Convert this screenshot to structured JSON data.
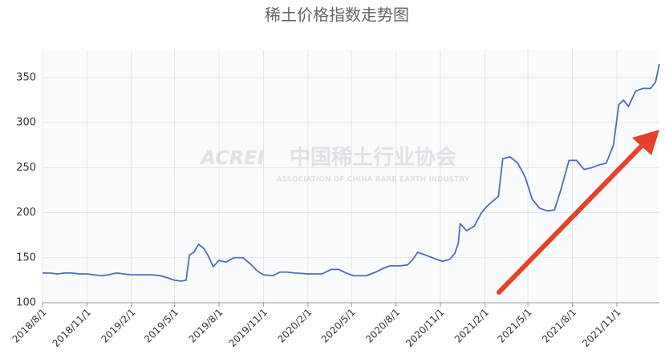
{
  "chart_data": {
    "type": "line",
    "title": "稀土价格指数走势图",
    "watermark": {
      "logo": "ACREI",
      "name": "中国稀土行业协会",
      "subtitle": "ASSOCIATION OF CHINA RARE EARTH INDUSTRY"
    },
    "x": [
      "2018/8/1",
      "2018/8/15",
      "2018/9/1",
      "2018/9/15",
      "2018/10/1",
      "2018/10/15",
      "2018/11/1",
      "2018/11/15",
      "2018/12/1",
      "2018/12/15",
      "2019/1/1",
      "2019/1/15",
      "2019/2/1",
      "2019/2/15",
      "2019/3/1",
      "2019/3/15",
      "2019/4/1",
      "2019/4/15",
      "2019/5/1",
      "2019/5/15",
      "2019/5/25",
      "2019/6/1",
      "2019/6/10",
      "2019/6/20",
      "2019/7/1",
      "2019/7/10",
      "2019/7/20",
      "2019/8/1",
      "2019/8/15",
      "2019/9/1",
      "2019/9/20",
      "2019/10/5",
      "2019/10/20",
      "2019/11/1",
      "2019/11/20",
      "2019/12/5",
      "2019/12/20",
      "2020/1/5",
      "2020/2/1",
      "2020/3/1",
      "2020/3/20",
      "2020/4/5",
      "2020/4/20",
      "2020/5/5",
      "2020/6/1",
      "2020/6/20",
      "2020/7/5",
      "2020/7/20",
      "2020/8/10",
      "2020/8/25",
      "2020/9/5",
      "2020/9/15",
      "2020/10/1",
      "2020/10/20",
      "2020/11/5",
      "2020/11/20",
      "2020/12/1",
      "2020/12/8",
      "2020/12/12",
      "2020/12/25",
      "2021/1/10",
      "2021/1/25",
      "2021/2/5",
      "2021/2/20",
      "2021/3/1",
      "2021/3/10",
      "2021/3/25",
      "2021/4/10",
      "2021/4/25",
      "2021/5/10",
      "2021/5/25",
      "2021/6/10",
      "2021/6/25",
      "2021/7/8",
      "2021/7/25",
      "2021/8/10",
      "2021/8/25",
      "2021/9/10",
      "2021/9/25",
      "2021/10/10",
      "2021/10/25",
      "2021/11/5",
      "2021/11/15",
      "2021/11/25",
      "2021/12/10",
      "2021/12/25",
      "2022/1/10",
      "2022/1/20",
      "2022/1/28"
    ],
    "values": [
      133,
      133,
      132,
      133,
      133,
      132,
      132,
      131,
      130,
      131,
      133,
      132,
      131,
      131,
      131,
      131,
      130,
      128,
      125,
      124,
      125,
      153,
      156,
      165,
      160,
      152,
      140,
      147,
      145,
      150,
      150,
      143,
      135,
      131,
      130,
      134,
      134,
      133,
      132,
      132,
      137,
      137,
      133,
      130,
      130,
      134,
      138,
      141,
      141,
      142,
      148,
      156,
      153,
      149,
      146,
      148,
      155,
      166,
      188,
      180,
      185,
      200,
      207,
      214,
      218,
      260,
      262,
      255,
      240,
      215,
      205,
      202,
      203,
      225,
      258,
      258,
      248,
      250,
      253,
      255,
      275,
      320,
      325,
      318,
      335,
      338,
      338,
      345,
      365
    ],
    "color": "#4a6fb5",
    "xlim": [
      "2018/8/1",
      "2022/1/28"
    ],
    "xticks": [
      "2018/8/1",
      "2018/11/1",
      "2019/2/1",
      "2019/5/1",
      "2019/8/1",
      "2019/11/1",
      "2020/2/1",
      "2020/5/1",
      "2020/8/1",
      "2020/11/1",
      "2021/2/1",
      "2021/5/1",
      "2021/8/1",
      "2021/11/1"
    ],
    "ylim": [
      100,
      381
    ],
    "yticks": [
      100,
      150,
      200,
      250,
      300,
      350
    ],
    "grid": true
  }
}
